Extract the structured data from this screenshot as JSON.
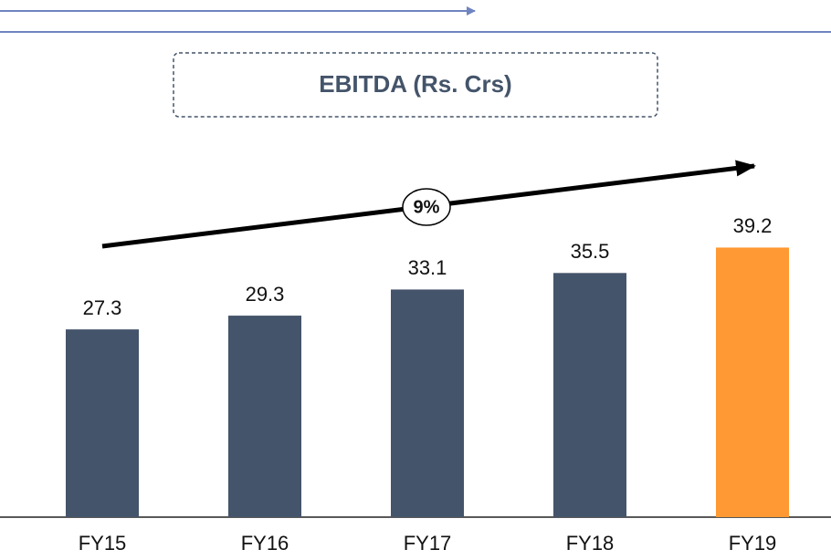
{
  "chart_data": {
    "type": "bar",
    "title": "EBITDA (Rs. Crs)",
    "annotation": "9%",
    "categories": [
      "FY15",
      "FY16",
      "FY17",
      "FY18",
      "FY19"
    ],
    "values": [
      27.3,
      29.3,
      33.1,
      35.5,
      39.2
    ],
    "colors": [
      "#44546a",
      "#44546a",
      "#44546a",
      "#44546a",
      "#ff9933"
    ],
    "ylim": [
      0,
      50
    ]
  }
}
